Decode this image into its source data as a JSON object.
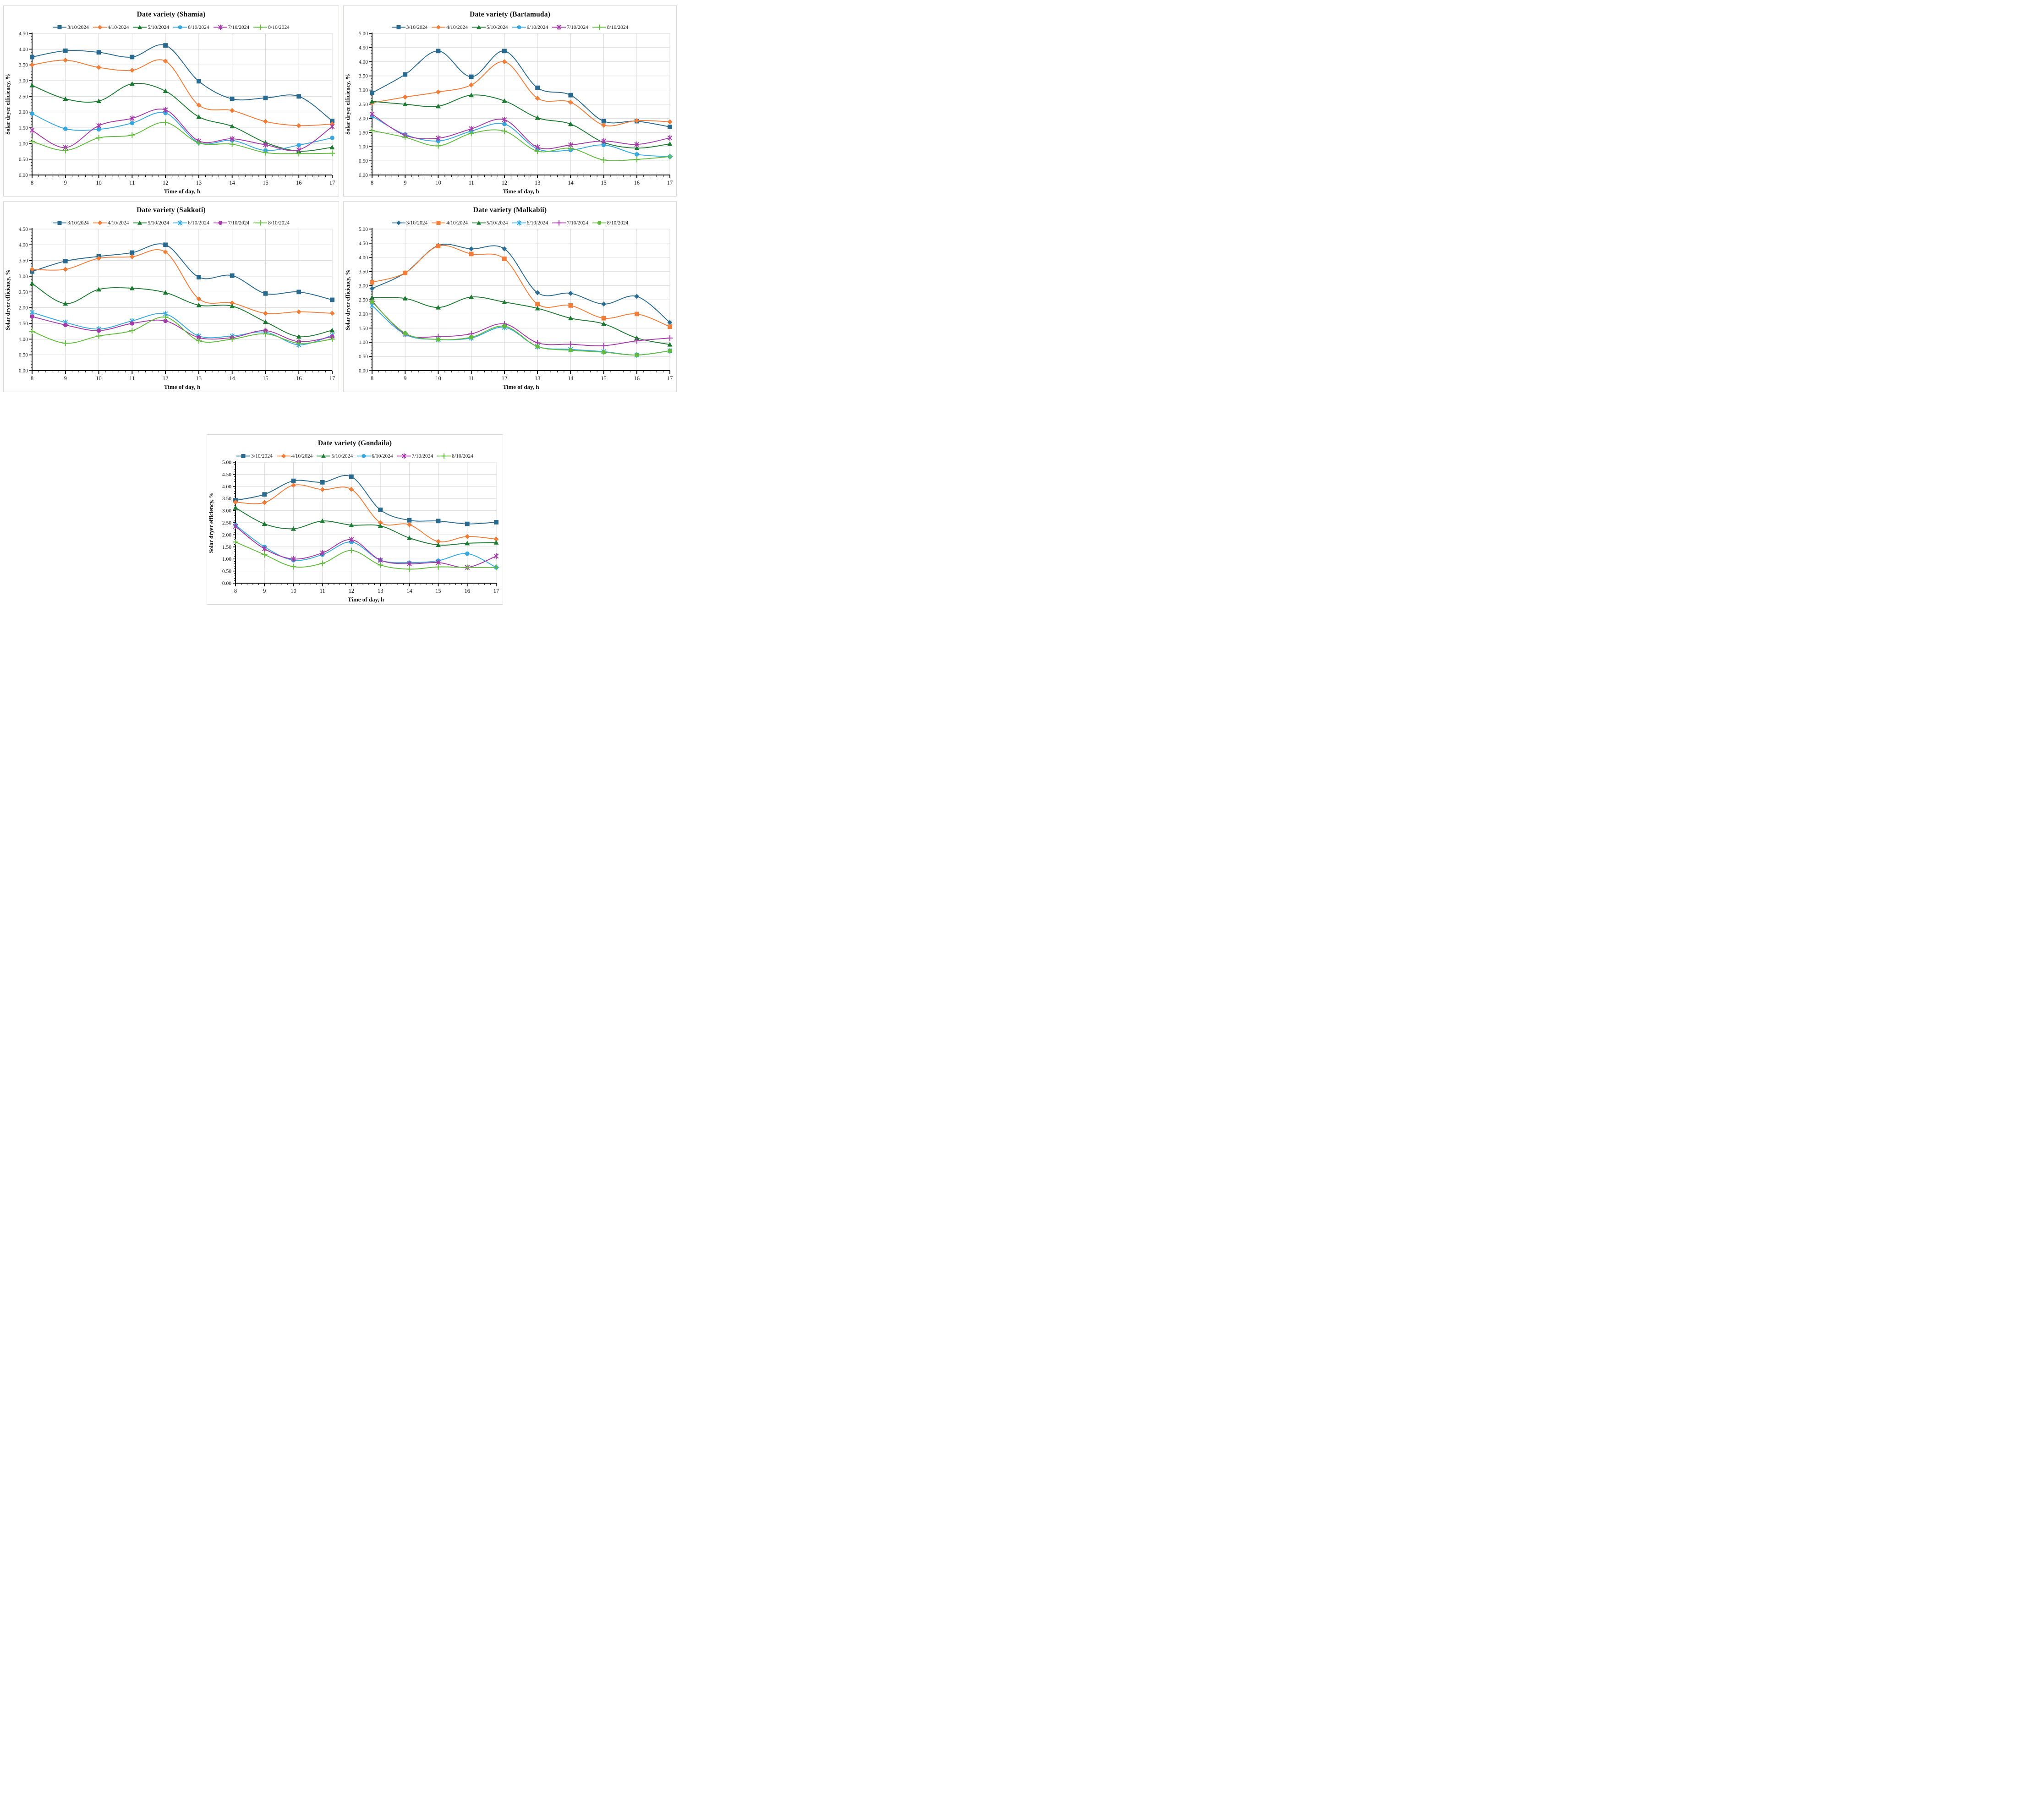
{
  "figure": {
    "y_axis_title": "Solar dryer efficiency, %",
    "x_axis_title": "Time of day, h",
    "grid_color": "#d8d8d8",
    "axis_color": "#000000",
    "panel_border_color": "#d3dcd3",
    "series_colors": {
      "navy": "#2b6a8f",
      "orange": "#f07e3b",
      "dark_green": "#1e7a33",
      "light_blue": "#38a9de",
      "magenta": "#a43ba8",
      "light_green": "#63bb3f"
    }
  },
  "chart_data": [
    {
      "type": "line",
      "title": "Date variety (Shamia)",
      "xlabel": "Time of day, h",
      "ylabel": "Solar dryer efficiency, %",
      "x": [
        8,
        9,
        10,
        11,
        12,
        13,
        14,
        15,
        16,
        17
      ],
      "ylim": [
        0,
        4.5
      ],
      "ytick_step": 0.5,
      "legend_position": "top",
      "grid": true,
      "series": [
        {
          "name": "3/10/2024",
          "color": "#2b6a8f",
          "marker": "square",
          "values": [
            3.75,
            3.95,
            3.9,
            3.75,
            4.12,
            2.98,
            2.42,
            2.45,
            2.5,
            1.72
          ]
        },
        {
          "name": "4/10/2024",
          "color": "#f07e3b",
          "marker": "diamond",
          "values": [
            3.5,
            3.65,
            3.42,
            3.33,
            3.62,
            2.22,
            2.05,
            1.7,
            1.57,
            1.62
          ]
        },
        {
          "name": "5/10/2024",
          "color": "#1e7a33",
          "marker": "triangle",
          "values": [
            2.85,
            2.42,
            2.35,
            2.9,
            2.67,
            1.85,
            1.55,
            1.03,
            0.76,
            0.88
          ]
        },
        {
          "name": "6/10/2024",
          "color": "#38a9de",
          "marker": "circle",
          "values": [
            1.95,
            1.47,
            1.45,
            1.65,
            1.97,
            1.03,
            1.1,
            0.78,
            0.95,
            1.18
          ]
        },
        {
          "name": "7/10/2024",
          "color": "#a43ba8",
          "marker": "asterisk",
          "values": [
            1.42,
            0.87,
            1.57,
            1.8,
            2.07,
            1.08,
            1.15,
            0.96,
            0.8,
            1.54
          ]
        },
        {
          "name": "8/10/2024",
          "color": "#63bb3f",
          "marker": "plus",
          "values": [
            1.07,
            0.78,
            1.18,
            1.27,
            1.67,
            1.02,
            0.98,
            0.71,
            0.68,
            0.69
          ]
        }
      ]
    },
    {
      "type": "line",
      "title": "Date variety (Bartamuda)",
      "xlabel": "Time of day, h",
      "ylabel": "Solar dryer efficiency, %",
      "x": [
        8,
        9,
        10,
        11,
        12,
        13,
        14,
        15,
        16,
        17
      ],
      "ylim": [
        0,
        5.0
      ],
      "ytick_step": 0.5,
      "legend_position": "top",
      "grid": true,
      "series": [
        {
          "name": "3/10/2024",
          "color": "#2b6a8f",
          "marker": "square",
          "values": [
            2.9,
            3.55,
            4.38,
            3.47,
            4.38,
            3.08,
            2.82,
            1.9,
            1.9,
            1.7
          ]
        },
        {
          "name": "4/10/2024",
          "color": "#f07e3b",
          "marker": "diamond",
          "values": [
            2.55,
            2.75,
            2.93,
            3.18,
            4.0,
            2.71,
            2.57,
            1.76,
            1.92,
            1.88
          ]
        },
        {
          "name": "5/10/2024",
          "color": "#1e7a33",
          "marker": "triangle",
          "values": [
            2.6,
            2.5,
            2.43,
            2.82,
            2.62,
            2.02,
            1.8,
            1.15,
            0.95,
            1.1
          ]
        },
        {
          "name": "6/10/2024",
          "color": "#38a9de",
          "marker": "circle",
          "values": [
            2.08,
            1.43,
            1.2,
            1.55,
            1.8,
            0.92,
            0.88,
            1.06,
            0.73,
            0.65
          ]
        },
        {
          "name": "7/10/2024",
          "color": "#a43ba8",
          "marker": "asterisk",
          "values": [
            2.15,
            1.4,
            1.3,
            1.63,
            1.95,
            0.98,
            1.06,
            1.2,
            1.08,
            1.31
          ]
        },
        {
          "name": "8/10/2024",
          "color": "#63bb3f",
          "marker": "plus",
          "values": [
            1.57,
            1.33,
            1.03,
            1.47,
            1.55,
            0.84,
            0.94,
            0.53,
            0.55,
            0.65
          ]
        }
      ]
    },
    {
      "type": "line",
      "title": "Date variety (Sakkoti)",
      "xlabel": "Time of day, h",
      "ylabel": "Solar dryer efficiency, %",
      "x": [
        8,
        9,
        10,
        11,
        12,
        13,
        14,
        15,
        16,
        17
      ],
      "ylim": [
        0,
        4.5
      ],
      "ytick_step": 0.5,
      "legend_position": "top",
      "grid": true,
      "series": [
        {
          "name": "3/10/2024",
          "color": "#2b6a8f",
          "marker": "square",
          "values": [
            3.15,
            3.48,
            3.63,
            3.75,
            4.0,
            2.97,
            3.02,
            2.45,
            2.5,
            2.25
          ]
        },
        {
          "name": "4/10/2024",
          "color": "#f07e3b",
          "marker": "diamond",
          "values": [
            3.22,
            3.22,
            3.57,
            3.62,
            3.77,
            2.28,
            2.15,
            1.82,
            1.87,
            1.82
          ]
        },
        {
          "name": "5/10/2024",
          "color": "#1e7a33",
          "marker": "triangle",
          "values": [
            2.77,
            2.13,
            2.58,
            2.62,
            2.48,
            2.08,
            2.05,
            1.55,
            1.08,
            1.28
          ]
        },
        {
          "name": "6/10/2024",
          "color": "#38a9de",
          "marker": "asterisk",
          "values": [
            1.85,
            1.53,
            1.32,
            1.58,
            1.8,
            1.1,
            1.1,
            1.22,
            0.82,
            1.12
          ]
        },
        {
          "name": "7/10/2024",
          "color": "#a43ba8",
          "marker": "circle",
          "values": [
            1.72,
            1.45,
            1.27,
            1.5,
            1.58,
            1.05,
            1.05,
            1.27,
            0.92,
            1.08
          ]
        },
        {
          "name": "8/10/2024",
          "color": "#63bb3f",
          "marker": "plus",
          "values": [
            1.25,
            0.87,
            1.1,
            1.27,
            1.7,
            0.95,
            1.0,
            1.17,
            0.87,
            1.0
          ]
        }
      ]
    },
    {
      "type": "line",
      "title": "Date variety (Malkabii)",
      "xlabel": "Time of day, h",
      "ylabel": "Solar dryer efficiency, %",
      "x": [
        8,
        9,
        10,
        11,
        12,
        13,
        14,
        15,
        16,
        17
      ],
      "ylim": [
        0,
        5.0
      ],
      "ytick_step": 0.5,
      "legend_position": "top",
      "grid": true,
      "series": [
        {
          "name": "3/10/2024",
          "color": "#2b6a8f",
          "marker": "diamond",
          "values": [
            2.9,
            3.45,
            4.42,
            4.3,
            4.3,
            2.75,
            2.73,
            2.35,
            2.62,
            1.7
          ]
        },
        {
          "name": "4/10/2024",
          "color": "#f07e3b",
          "marker": "square",
          "values": [
            3.12,
            3.45,
            4.4,
            4.12,
            3.95,
            2.35,
            2.3,
            1.85,
            2.0,
            1.55
          ]
        },
        {
          "name": "5/10/2024",
          "color": "#1e7a33",
          "marker": "triangle",
          "values": [
            2.58,
            2.55,
            2.23,
            2.6,
            2.42,
            2.2,
            1.85,
            1.65,
            1.15,
            0.92
          ]
        },
        {
          "name": "6/10/2024",
          "color": "#38a9de",
          "marker": "asterisk",
          "values": [
            2.3,
            1.28,
            1.1,
            1.15,
            1.53,
            0.85,
            0.75,
            0.67,
            0.55,
            0.7
          ]
        },
        {
          "name": "7/10/2024",
          "color": "#a43ba8",
          "marker": "plus",
          "values": [
            2.45,
            1.3,
            1.2,
            1.3,
            1.65,
            0.98,
            0.93,
            0.88,
            1.05,
            1.15
          ]
        },
        {
          "name": "8/10/2024",
          "color": "#63bb3f",
          "marker": "circle",
          "values": [
            2.43,
            1.32,
            1.1,
            1.18,
            1.57,
            0.85,
            0.72,
            0.65,
            0.55,
            0.7
          ]
        }
      ]
    },
    {
      "type": "line",
      "title": "Date variety (Gondaila)",
      "xlabel": "Time of day, h",
      "ylabel": "Solar dryer efficiency, %",
      "x": [
        8,
        9,
        10,
        11,
        12,
        13,
        14,
        15,
        16,
        17
      ],
      "ylim": [
        0,
        5.0
      ],
      "ytick_step": 0.5,
      "legend_position": "top",
      "grid": true,
      "series": [
        {
          "name": "3/10/2024",
          "color": "#2b6a8f",
          "marker": "square",
          "values": [
            3.42,
            3.67,
            4.23,
            4.17,
            4.4,
            3.03,
            2.6,
            2.57,
            2.45,
            2.52
          ]
        },
        {
          "name": "4/10/2024",
          "color": "#f07e3b",
          "marker": "diamond",
          "values": [
            3.35,
            3.33,
            4.05,
            3.87,
            3.88,
            2.5,
            2.42,
            1.72,
            1.93,
            1.82
          ]
        },
        {
          "name": "5/10/2024",
          "color": "#1e7a33",
          "marker": "triangle",
          "values": [
            3.12,
            2.45,
            2.25,
            2.57,
            2.4,
            2.37,
            1.87,
            1.58,
            1.65,
            1.68
          ]
        },
        {
          "name": "6/10/2024",
          "color": "#38a9de",
          "marker": "circle",
          "values": [
            2.4,
            1.5,
            0.95,
            1.18,
            1.7,
            0.95,
            0.85,
            0.93,
            1.22,
            0.65
          ]
        },
        {
          "name": "7/10/2024",
          "color": "#a43ba8",
          "marker": "asterisk",
          "values": [
            2.35,
            1.42,
            1.0,
            1.25,
            1.8,
            0.95,
            0.8,
            0.85,
            0.65,
            1.12
          ]
        },
        {
          "name": "8/10/2024",
          "color": "#63bb3f",
          "marker": "plus",
          "values": [
            1.7,
            1.18,
            0.68,
            0.82,
            1.35,
            0.75,
            0.58,
            0.67,
            0.65,
            0.65
          ]
        }
      ]
    }
  ]
}
